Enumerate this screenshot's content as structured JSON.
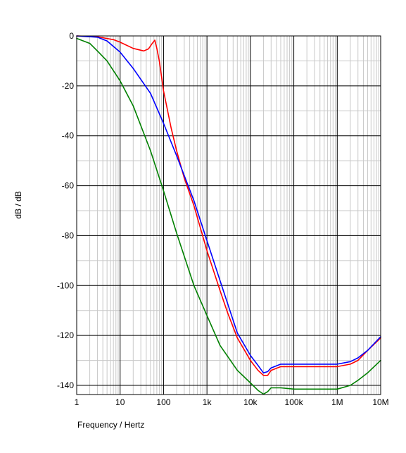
{
  "chart_data": {
    "type": "line",
    "xlabel": "Frequency / Hertz",
    "ylabel": "dB / dB",
    "x_scale": "log",
    "xlim": [
      1,
      10000000
    ],
    "ylim": [
      -145,
      0
    ],
    "grid": true,
    "x_tick_values": [
      1,
      10,
      100,
      1000,
      10000,
      100000,
      1000000,
      10000000
    ],
    "x_tick_labels": [
      "1",
      "10",
      "100",
      "1k",
      "10k",
      "100k",
      "1M",
      "10M"
    ],
    "y_tick_values": [
      0,
      -20,
      -40,
      -60,
      -80,
      -100,
      -120,
      -140
    ],
    "y_tick_labels": [
      "0",
      "-20",
      "-40",
      "-60",
      "-80",
      "-100",
      "-120",
      "-140"
    ],
    "series": [
      {
        "color": "#ff0000",
        "x": [
          1,
          3,
          7,
          10,
          20,
          35,
          45,
          55,
          63,
          70,
          80,
          100,
          150,
          200,
          300,
          500,
          1000,
          2000,
          3000,
          5000,
          10000,
          15000,
          20000,
          25000,
          30000,
          50000,
          100000,
          300000,
          1000000,
          2000000,
          3000000,
          5000000,
          10000000
        ],
        "y": [
          0,
          -0.3,
          -1.5,
          -2.5,
          -5,
          -6,
          -5.2,
          -3,
          -1.7,
          -5,
          -10,
          -22,
          -37,
          -46,
          -57,
          -68,
          -86,
          -102,
          -111,
          -121,
          -130,
          -134,
          -136,
          -136,
          -134,
          -132.5,
          -132.5,
          -132.5,
          -132.5,
          -131.5,
          -130,
          -126,
          -121
        ]
      },
      {
        "color": "#0000ff",
        "x": [
          1,
          3,
          5,
          10,
          20,
          50,
          100,
          200,
          500,
          1000,
          2000,
          5000,
          10000,
          15000,
          20000,
          25000,
          30000,
          50000,
          100000,
          300000,
          1000000,
          2000000,
          3000000,
          5000000,
          10000000
        ],
        "y": [
          0,
          -0.5,
          -2,
          -6.5,
          -13,
          -23,
          -35,
          -48,
          -66,
          -82,
          -98,
          -119,
          -128,
          -132,
          -135,
          -134.5,
          -133,
          -131.5,
          -131.5,
          -131.5,
          -131.5,
          -130.5,
          -129,
          -126,
          -120.5
        ]
      },
      {
        "color": "#008000",
        "x": [
          1,
          2,
          3,
          5,
          10,
          20,
          50,
          100,
          200,
          500,
          1000,
          2000,
          5000,
          10000,
          15000,
          20000,
          25000,
          30000,
          50000,
          100000,
          300000,
          1000000,
          2000000,
          3000000,
          5000000,
          10000000
        ],
        "y": [
          -1,
          -3,
          -6,
          -10,
          -18,
          -28,
          -46,
          -62,
          -79,
          -100,
          -112,
          -124,
          -134,
          -139,
          -142,
          -143.5,
          -142.5,
          -141,
          -141,
          -141.5,
          -141.5,
          -141.5,
          -140,
          -138,
          -135,
          -130
        ]
      }
    ]
  }
}
